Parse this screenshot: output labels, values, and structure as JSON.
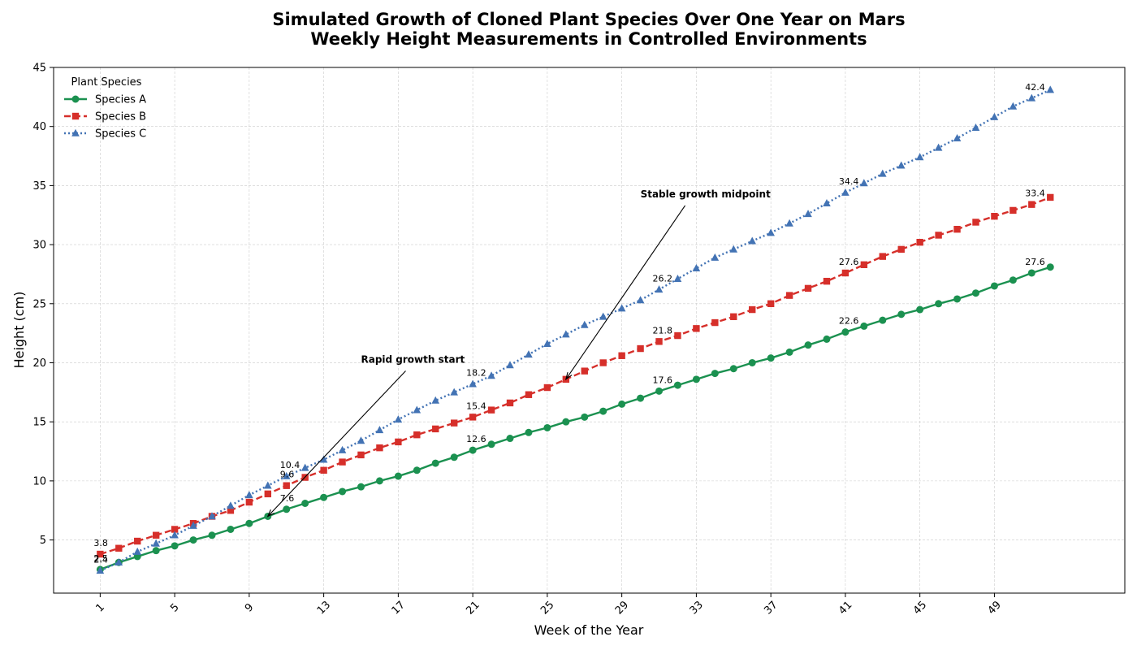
{
  "chart_data": {
    "type": "line",
    "title": "Simulated Growth of Cloned Plant Species Over One Year on Mars",
    "subtitle": "Weekly Height Measurements in Controlled Environments",
    "xlabel": "Week of the Year",
    "ylabel": "Height (cm)",
    "xlim": [
      -1.5,
      56
    ],
    "ylim": [
      0.5,
      45
    ],
    "x_ticks": [
      1,
      5,
      9,
      13,
      17,
      21,
      25,
      29,
      33,
      37,
      41,
      45,
      49
    ],
    "y_ticks": [
      5,
      10,
      15,
      20,
      25,
      30,
      35,
      40,
      45
    ],
    "grid": true,
    "legend_title": "Plant Species",
    "legend_position": "top-left",
    "x": [
      1,
      2,
      3,
      4,
      5,
      6,
      7,
      8,
      9,
      10,
      11,
      12,
      13,
      14,
      15,
      16,
      17,
      18,
      19,
      20,
      21,
      22,
      23,
      24,
      25,
      26,
      27,
      28,
      29,
      30,
      31,
      32,
      33,
      34,
      35,
      36,
      37,
      38,
      39,
      40,
      41,
      42,
      43,
      44,
      45,
      46,
      47,
      48,
      49,
      50,
      51,
      52
    ],
    "series": [
      {
        "name": "Species A",
        "color": "#1b9150",
        "linestyle": "solid",
        "marker": "circle",
        "values": [
          2.5,
          3.1,
          3.6,
          4.1,
          4.5,
          5.0,
          5.4,
          5.9,
          6.4,
          7.0,
          7.6,
          8.1,
          8.6,
          9.1,
          9.5,
          10.0,
          10.4,
          10.9,
          11.5,
          12.0,
          12.6,
          13.1,
          13.6,
          14.1,
          14.5,
          15.0,
          15.4,
          15.9,
          16.5,
          17.0,
          17.6,
          18.1,
          18.6,
          19.1,
          19.5,
          20.0,
          20.4,
          20.9,
          21.5,
          22.0,
          22.6,
          23.1,
          23.6,
          24.1,
          24.5,
          25.0,
          25.4,
          25.9,
          26.5,
          27.0,
          27.6,
          28.1
        ]
      },
      {
        "name": "Species B",
        "color": "#d62f2a",
        "linestyle": "dashed",
        "marker": "square",
        "values": [
          3.8,
          4.3,
          4.9,
          5.4,
          5.9,
          6.4,
          7.0,
          7.5,
          8.2,
          8.9,
          9.6,
          10.3,
          10.9,
          11.6,
          12.2,
          12.8,
          13.3,
          13.9,
          14.4,
          14.9,
          15.4,
          16.0,
          16.6,
          17.3,
          17.9,
          18.6,
          19.3,
          20.0,
          20.6,
          21.2,
          21.8,
          22.3,
          22.9,
          23.4,
          23.9,
          24.5,
          25.0,
          25.7,
          26.3,
          26.9,
          27.6,
          28.3,
          29.0,
          29.6,
          30.2,
          30.8,
          31.3,
          31.9,
          32.4,
          32.9,
          33.4,
          34.0
        ]
      },
      {
        "name": "Species C",
        "color": "#4373b4",
        "linestyle": "dotted",
        "marker": "triangle",
        "values": [
          2.4,
          3.1,
          4.0,
          4.7,
          5.4,
          6.2,
          7.0,
          7.9,
          8.8,
          9.6,
          10.4,
          11.1,
          11.8,
          12.6,
          13.4,
          14.3,
          15.2,
          16.0,
          16.8,
          17.5,
          18.2,
          18.9,
          19.8,
          20.7,
          21.6,
          22.4,
          23.2,
          23.9,
          24.6,
          25.3,
          26.2,
          27.1,
          28.0,
          28.9,
          29.6,
          30.3,
          31.0,
          31.8,
          32.6,
          33.5,
          34.4,
          35.2,
          36.0,
          36.7,
          37.4,
          38.2,
          39.0,
          39.9,
          40.8,
          41.7,
          42.4,
          43.1
        ]
      }
    ],
    "data_labels_at_weeks": [
      1,
      11,
      21,
      31,
      41,
      51
    ],
    "annotations": [
      {
        "text": "Rapid growth start",
        "point": [
          10,
          7.0
        ],
        "text_pos": [
          15,
          20
        ]
      },
      {
        "text": "Stable growth midpoint",
        "point": [
          26,
          18.6
        ],
        "text_pos": [
          30,
          34
        ]
      }
    ]
  }
}
